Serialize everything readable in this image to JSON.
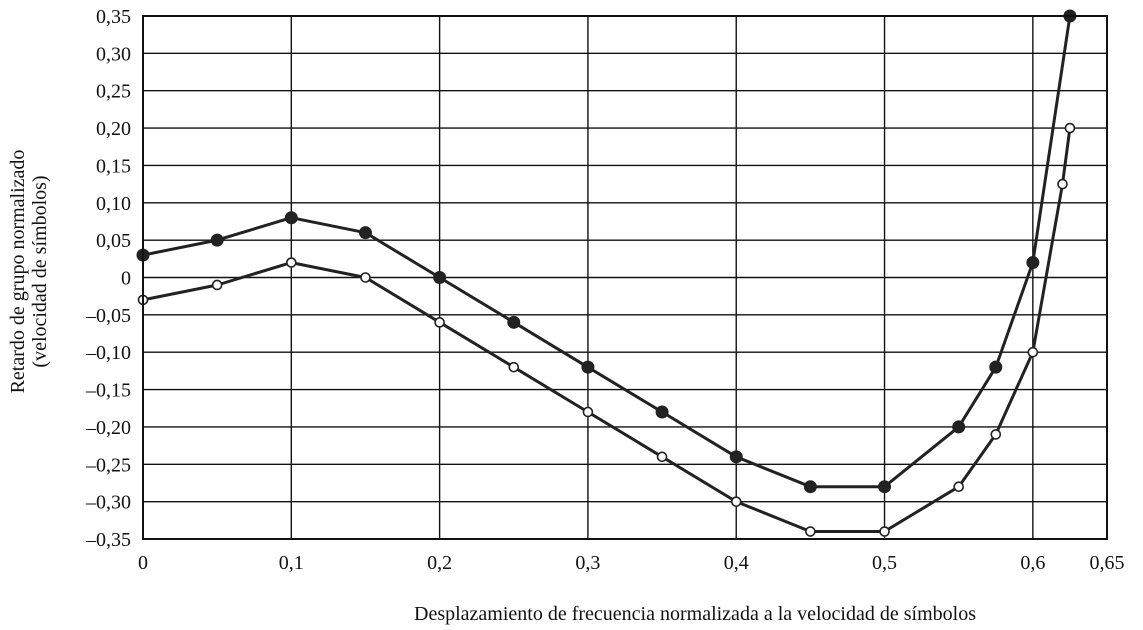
{
  "chart_data": {
    "type": "line",
    "xlabel": "Desplazamiento de frecuencia normalizada a la velocidad de símbolos",
    "ylabel_line1": "Retardo de grupo normalizado",
    "ylabel_line2": "(velocidad de símbolos)",
    "xlim": [
      0,
      0.65
    ],
    "ylim": [
      -0.35,
      0.35
    ],
    "grid": true,
    "x_ticks": [
      0,
      0.1,
      0.2,
      0.3,
      0.4,
      0.5,
      0.6,
      0.65
    ],
    "x_tick_labels": [
      "0",
      "0,1",
      "0,2",
      "0,3",
      "0,4",
      "0,5",
      "0,6",
      "0,65"
    ],
    "y_ticks": [
      0.35,
      0.3,
      0.25,
      0.2,
      0.15,
      0.1,
      0.05,
      0,
      -0.05,
      -0.1,
      -0.15,
      -0.2,
      -0.25,
      -0.3,
      -0.35
    ],
    "y_tick_labels": [
      "0,35",
      "0,30",
      "0,25",
      "0,20",
      "0,15",
      "0,10",
      "0,05",
      "0",
      "–0,05",
      "–0,10",
      "–0,15",
      "–0,20",
      "–0,25",
      "–0,30",
      "–0,35"
    ],
    "series": [
      {
        "marker": "filled",
        "color": "#222222",
        "x": [
          0,
          0.05,
          0.1,
          0.15,
          0.2,
          0.25,
          0.3,
          0.35,
          0.4,
          0.45,
          0.5,
          0.55,
          0.575,
          0.6,
          0.625
        ],
        "y": [
          0.03,
          0.05,
          0.08,
          0.06,
          0.0,
          -0.06,
          -0.12,
          -0.18,
          -0.24,
          -0.28,
          -0.28,
          -0.2,
          -0.12,
          0.02,
          0.35
        ]
      },
      {
        "marker": "open",
        "color": "#222222",
        "x": [
          0,
          0.05,
          0.1,
          0.15,
          0.2,
          0.25,
          0.3,
          0.35,
          0.4,
          0.45,
          0.5,
          0.55,
          0.575,
          0.6,
          0.62,
          0.625
        ],
        "y": [
          -0.03,
          -0.01,
          0.02,
          0.0,
          -0.06,
          -0.12,
          -0.18,
          -0.24,
          -0.3,
          -0.34,
          -0.34,
          -0.28,
          -0.21,
          -0.1,
          0.125,
          0.2
        ]
      }
    ]
  }
}
